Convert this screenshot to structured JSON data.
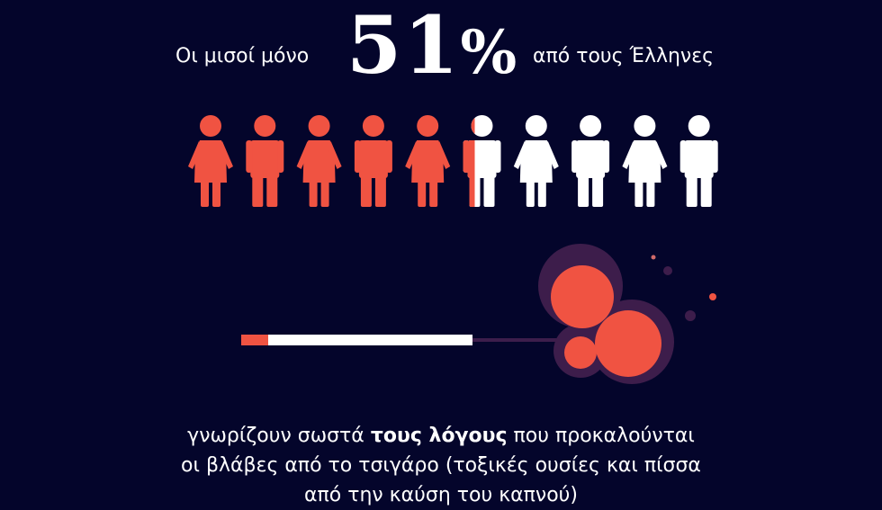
{
  "headline": {
    "prefix": "Οι μισοί μόνο",
    "number": "51",
    "percent_sign": "%",
    "suffix": "από τους Έλληνες"
  },
  "people_chart": {
    "total": 10,
    "highlighted_fraction": 0.51,
    "figures": [
      "female",
      "male",
      "female",
      "male",
      "female",
      "male",
      "female",
      "male",
      "female",
      "male"
    ],
    "highlight_color": "#f05342",
    "base_color": "#ffffff"
  },
  "colors": {
    "background": "#04052b",
    "accent": "#f05342",
    "smoke": "#3d1d4b"
  },
  "body": {
    "line1_before": "γνωρίζουν σωστά ",
    "line1_bold": "τους λόγους",
    "line1_after": " που προκαλούνται",
    "line2": "οι βλάβες από το τσιγάρο (τοξικές ουσίες και πίσσα",
    "line3": "από την καύση του καπνού)"
  }
}
